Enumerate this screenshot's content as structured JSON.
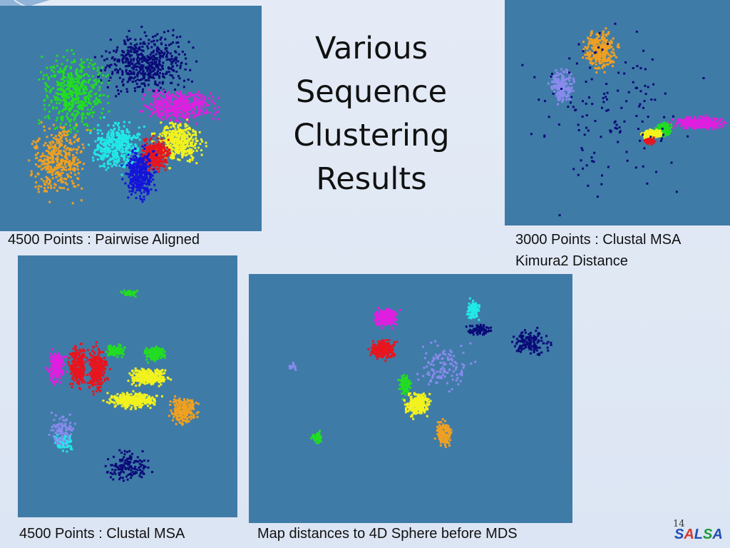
{
  "slide": {
    "title_lines": [
      "Various",
      "Sequence",
      "Clustering",
      "Results"
    ],
    "slide_number": "14",
    "logo_letters": [
      "S",
      "A",
      "L",
      "S",
      "A"
    ],
    "logo_colors": [
      "#1f4fb5",
      "#d43a2a",
      "#1f4fb5",
      "#1e9a3a",
      "#1f4fb5"
    ]
  },
  "captions": {
    "plot1": "4500 Points : Pairwise Aligned",
    "plot2_line1": "3000 Points : Clustal MSA",
    "plot2_line2": "Kimura2 Distance",
    "plot3": "4500 Points : Clustal MSA",
    "plot4": "Map distances to 4D Sphere before MDS"
  },
  "colors": {
    "plot_background": "#3f7ba7",
    "navy": "#0a0a78",
    "green": "#22dd22",
    "magenta": "#e01ee0",
    "cyan": "#22e8e8",
    "yellow": "#f2f21e",
    "red": "#e8141e",
    "orange": "#f0a020",
    "blue": "#1414d8",
    "lavender": "#8a8aee"
  },
  "chart_data": [
    {
      "type": "scatter",
      "caption": "4500 Points : Pairwise Aligned",
      "clusters": [
        {
          "color": "navy",
          "cx": 0.55,
          "cy": 0.25,
          "rx": 0.22,
          "ry": 0.17,
          "n": 520
        },
        {
          "color": "green",
          "cx": 0.28,
          "cy": 0.38,
          "rx": 0.16,
          "ry": 0.22,
          "n": 520
        },
        {
          "color": "magenta",
          "cx": 0.68,
          "cy": 0.44,
          "rx": 0.18,
          "ry": 0.09,
          "n": 420
        },
        {
          "color": "orange",
          "cx": 0.22,
          "cy": 0.68,
          "rx": 0.14,
          "ry": 0.22,
          "n": 380
        },
        {
          "color": "cyan",
          "cx": 0.44,
          "cy": 0.62,
          "rx": 0.12,
          "ry": 0.14,
          "n": 420
        },
        {
          "color": "yellow",
          "cx": 0.68,
          "cy": 0.6,
          "rx": 0.12,
          "ry": 0.12,
          "n": 420
        },
        {
          "color": "red",
          "cx": 0.59,
          "cy": 0.66,
          "rx": 0.07,
          "ry": 0.1,
          "n": 280
        },
        {
          "color": "blue",
          "cx": 0.53,
          "cy": 0.74,
          "rx": 0.08,
          "ry": 0.14,
          "n": 340
        }
      ]
    },
    {
      "type": "scatter",
      "caption": "3000 Points : Clustal MSA Kimura2 Distance",
      "clusters": [
        {
          "color": "orange",
          "cx": 0.42,
          "cy": 0.22,
          "rx": 0.1,
          "ry": 0.12,
          "n": 300
        },
        {
          "color": "lavender",
          "cx": 0.25,
          "cy": 0.38,
          "rx": 0.07,
          "ry": 0.09,
          "n": 200
        },
        {
          "color": "magenta",
          "cx": 0.86,
          "cy": 0.54,
          "rx": 0.14,
          "ry": 0.035,
          "n": 320
        },
        {
          "color": "green",
          "cx": 0.7,
          "cy": 0.57,
          "rx": 0.05,
          "ry": 0.04,
          "n": 160
        },
        {
          "color": "yellow",
          "cx": 0.65,
          "cy": 0.59,
          "rx": 0.06,
          "ry": 0.025,
          "n": 180
        },
        {
          "color": "red",
          "cx": 0.64,
          "cy": 0.62,
          "rx": 0.03,
          "ry": 0.02,
          "n": 60
        },
        {
          "color": "navy",
          "cx": 0.5,
          "cy": 0.5,
          "rx": 0.5,
          "ry": 0.5,
          "n": 140
        }
      ]
    },
    {
      "type": "scatter",
      "caption": "4500 Points : Clustal MSA",
      "clusters": [
        {
          "color": "magenta",
          "cx": 0.17,
          "cy": 0.42,
          "rx": 0.05,
          "ry": 0.08,
          "n": 180
        },
        {
          "color": "red",
          "cx": 0.27,
          "cy": 0.42,
          "rx": 0.05,
          "ry": 0.11,
          "n": 260
        },
        {
          "color": "red",
          "cx": 0.36,
          "cy": 0.43,
          "rx": 0.06,
          "ry": 0.11,
          "n": 260
        },
        {
          "color": "green",
          "cx": 0.44,
          "cy": 0.36,
          "rx": 0.06,
          "ry": 0.03,
          "n": 110
        },
        {
          "color": "green",
          "cx": 0.62,
          "cy": 0.37,
          "rx": 0.06,
          "ry": 0.04,
          "n": 140
        },
        {
          "color": "yellow",
          "cx": 0.59,
          "cy": 0.46,
          "rx": 0.12,
          "ry": 0.04,
          "n": 300
        },
        {
          "color": "yellow",
          "cx": 0.52,
          "cy": 0.55,
          "rx": 0.15,
          "ry": 0.04,
          "n": 340
        },
        {
          "color": "orange",
          "cx": 0.75,
          "cy": 0.59,
          "rx": 0.08,
          "ry": 0.07,
          "n": 220
        },
        {
          "color": "cyan",
          "cx": 0.2,
          "cy": 0.71,
          "rx": 0.05,
          "ry": 0.04,
          "n": 90
        },
        {
          "color": "lavender",
          "cx": 0.2,
          "cy": 0.66,
          "rx": 0.08,
          "ry": 0.08,
          "n": 90
        },
        {
          "color": "navy",
          "cx": 0.5,
          "cy": 0.8,
          "rx": 0.13,
          "ry": 0.08,
          "n": 140
        },
        {
          "color": "green",
          "cx": 0.5,
          "cy": 0.14,
          "rx": 0.05,
          "ry": 0.015,
          "n": 40
        }
      ]
    },
    {
      "type": "scatter",
      "caption": "Map distances to 4D Sphere before MDS",
      "clusters": [
        {
          "color": "magenta",
          "cx": 0.42,
          "cy": 0.17,
          "rx": 0.05,
          "ry": 0.05,
          "n": 240
        },
        {
          "color": "red",
          "cx": 0.41,
          "cy": 0.3,
          "rx": 0.05,
          "ry": 0.05,
          "n": 260
        },
        {
          "color": "cyan",
          "cx": 0.69,
          "cy": 0.14,
          "rx": 0.025,
          "ry": 0.05,
          "n": 110
        },
        {
          "color": "navy",
          "cx": 0.71,
          "cy": 0.22,
          "rx": 0.05,
          "ry": 0.03,
          "n": 80
        },
        {
          "color": "navy",
          "cx": 0.87,
          "cy": 0.27,
          "rx": 0.07,
          "ry": 0.07,
          "n": 140
        },
        {
          "color": "green",
          "cx": 0.48,
          "cy": 0.44,
          "rx": 0.025,
          "ry": 0.06,
          "n": 110
        },
        {
          "color": "yellow",
          "cx": 0.52,
          "cy": 0.52,
          "rx": 0.05,
          "ry": 0.06,
          "n": 260
        },
        {
          "color": "orange",
          "cx": 0.6,
          "cy": 0.64,
          "rx": 0.03,
          "ry": 0.07,
          "n": 150
        },
        {
          "color": "lavender",
          "cx": 0.6,
          "cy": 0.36,
          "rx": 0.12,
          "ry": 0.12,
          "n": 120
        },
        {
          "color": "green",
          "cx": 0.21,
          "cy": 0.65,
          "rx": 0.025,
          "ry": 0.03,
          "n": 50
        },
        {
          "color": "lavender",
          "cx": 0.13,
          "cy": 0.37,
          "rx": 0.015,
          "ry": 0.02,
          "n": 15
        }
      ]
    }
  ]
}
